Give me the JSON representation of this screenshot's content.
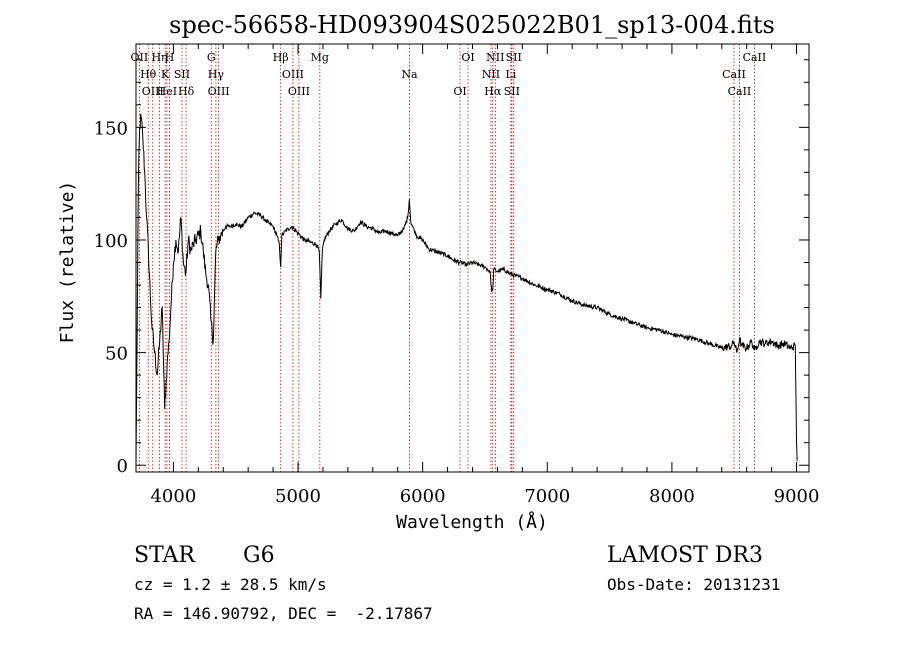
{
  "chart_data": {
    "type": "line",
    "title": "spec-56658-HD093904S025022B01_sp13-004.fits",
    "xlabel": "Wavelength (Å)",
    "ylabel": "Flux (relative)",
    "xlim": [
      3700,
      9100
    ],
    "ylim": [
      -3,
      187
    ],
    "x_ticks": [
      4000,
      5000,
      6000,
      7000,
      8000,
      9000
    ],
    "y_ticks": [
      0,
      50,
      100,
      150
    ],
    "grid": false,
    "series": [
      {
        "name": "flux",
        "x": [
          3700,
          3720,
          3730,
          3740,
          3755,
          3770,
          3785,
          3800,
          3815,
          3830,
          3850,
          3870,
          3890,
          3910,
          3930,
          3950,
          3965,
          3980,
          4000,
          4020,
          4040,
          4060,
          4080,
          4100,
          4120,
          4140,
          4160,
          4180,
          4200,
          4220,
          4240,
          4260,
          4280,
          4300,
          4320,
          4340,
          4360,
          4380,
          4400,
          4420,
          4450,
          4500,
          4550,
          4600,
          4650,
          4700,
          4750,
          4800,
          4830,
          4850,
          4861,
          4870,
          4900,
          4950,
          5000,
          5050,
          5100,
          5150,
          5170,
          5183,
          5195,
          5210,
          5250,
          5300,
          5350,
          5400,
          5450,
          5500,
          5550,
          5600,
          5650,
          5700,
          5750,
          5800,
          5850,
          5880,
          5893,
          5905,
          5920,
          5950,
          6000,
          6050,
          6100,
          6150,
          6200,
          6250,
          6300,
          6350,
          6400,
          6450,
          6500,
          6540,
          6555,
          6563,
          6570,
          6600,
          6650,
          6700,
          6750,
          6800,
          6900,
          7000,
          7100,
          7200,
          7300,
          7400,
          7500,
          7600,
          7700,
          7800,
          7900,
          8000,
          8100,
          8200,
          8300,
          8400,
          8480,
          8498,
          8520,
          8542,
          8560,
          8600,
          8640,
          8662,
          8680,
          8700,
          8750,
          8800,
          8850,
          8900,
          8950,
          8990,
          9000,
          9005
        ],
        "values": [
          0,
          130,
          150,
          155,
          145,
          130,
          110,
          95,
          75,
          60,
          50,
          40,
          55,
          70,
          25,
          45,
          55,
          70,
          90,
          100,
          95,
          110,
          90,
          85,
          100,
          95,
          98,
          100,
          102,
          104,
          95,
          85,
          80,
          65,
          55,
          95,
          100,
          102,
          104,
          106,
          106,
          107,
          106,
          110,
          112,
          111,
          108,
          106,
          102,
          98,
          88,
          102,
          104,
          106,
          103,
          100,
          99,
          98,
          95,
          74,
          95,
          100,
          104,
          107,
          109,
          105,
          104,
          108,
          106,
          105,
          103,
          104,
          103,
          102,
          105,
          110,
          118,
          108,
          106,
          102,
          100,
          96,
          95,
          94,
          93,
          91,
          90,
          89,
          90,
          89,
          88,
          86,
          77,
          78,
          87,
          86,
          87,
          85,
          84,
          83,
          80,
          78,
          76,
          73,
          71,
          70,
          67,
          65,
          63,
          61,
          60,
          58,
          57,
          56,
          54,
          52,
          53,
          55,
          50,
          56,
          53,
          52,
          55,
          51,
          53,
          55,
          54,
          55,
          53,
          54,
          52,
          53,
          10,
          2
        ]
      }
    ],
    "lines": [
      {
        "label": "OII",
        "x": 3727
      },
      {
        "label": "Hθ",
        "x": 3798
      },
      {
        "label": "OIII",
        "x": 3835
      },
      {
        "label": "Hη",
        "x": 3889
      },
      {
        "label": "K",
        "x": 3934
      },
      {
        "label": "HeI",
        "x": 3948
      },
      {
        "label": "H",
        "x": 3969
      },
      {
        "label": "SII",
        "x": 4069
      },
      {
        "label": "Hδ",
        "x": 4102
      },
      {
        "label": "G",
        "x": 4304
      },
      {
        "label": "Hγ",
        "x": 4341
      },
      {
        "label": "OIII",
        "x": 4363
      },
      {
        "label": "Hβ",
        "x": 4861
      },
      {
        "label": "OIII",
        "x": 4959
      },
      {
        "label": "OIII",
        "x": 5007
      },
      {
        "label": "Mg",
        "x": 5175
      },
      {
        "label": "Na",
        "x": 5894
      },
      {
        "label": "OI",
        "x": 6300
      },
      {
        "label": "OI",
        "x": 6364
      },
      {
        "label": "NII",
        "x": 6548
      },
      {
        "label": "Hα",
        "x": 6563
      },
      {
        "label": "NII",
        "x": 6583
      },
      {
        "label": "Li",
        "x": 6708
      },
      {
        "label": "SII",
        "x": 6716
      },
      {
        "label": "SII",
        "x": 6731
      },
      {
        "label": "CaII",
        "x": 8498
      },
      {
        "label": "CaII",
        "x": 8542
      },
      {
        "label": "CaII",
        "x": 8662
      }
    ]
  },
  "info": {
    "object_class": "STAR",
    "subclass": "G6",
    "survey": "LAMOST DR3",
    "redshift": "cz = 1.2 ± 28.5 km/s",
    "obs_date": "Obs-Date: 20131231",
    "coords": "RA = 146.90792, DEC =  -2.17867"
  }
}
